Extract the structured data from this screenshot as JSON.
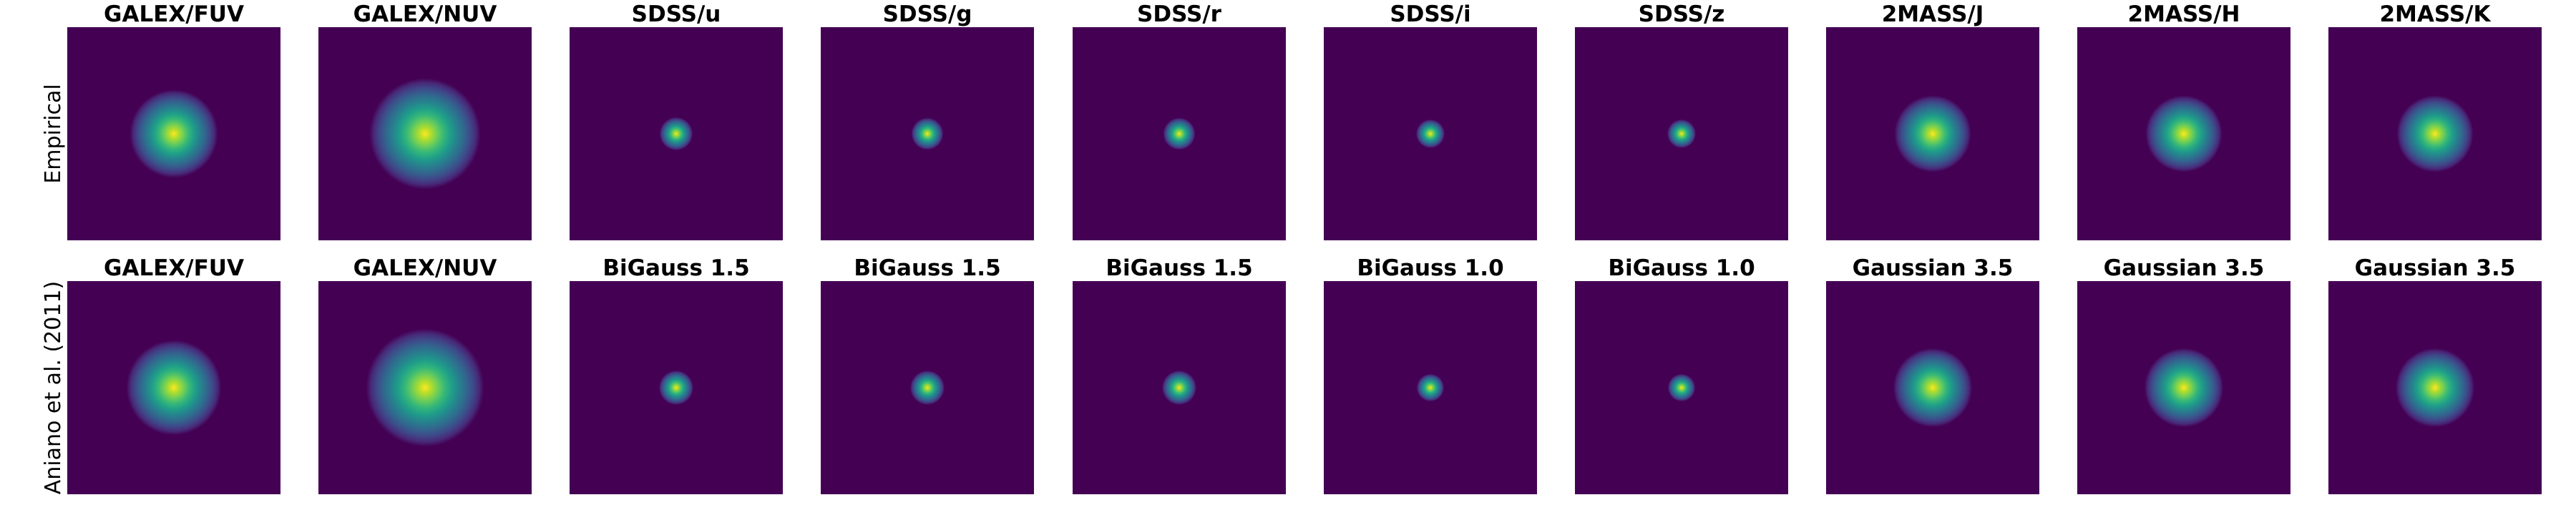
{
  "chart_data": {
    "type": "heatmap",
    "colormap": "viridis",
    "background_color": "#440154",
    "peak_color": "#fde725",
    "grid": false,
    "axes_visible": false,
    "rows": [
      {
        "label": "Empirical",
        "panels": [
          {
            "title": "GALEX/FUV",
            "psf_width": 3.6
          },
          {
            "title": "GALEX/NUV",
            "psf_width": 4.6
          },
          {
            "title": "SDSS/u",
            "psf_width": 1.2
          },
          {
            "title": "SDSS/g",
            "psf_width": 1.15
          },
          {
            "title": "SDSS/r",
            "psf_width": 1.15
          },
          {
            "title": "SDSS/i",
            "psf_width": 1.0
          },
          {
            "title": "SDSS/z",
            "psf_width": 1.0
          },
          {
            "title": "2MASS/J",
            "psf_width": 3.1
          },
          {
            "title": "2MASS/H",
            "psf_width": 3.1
          },
          {
            "title": "2MASS/K",
            "psf_width": 3.1
          }
        ]
      },
      {
        "label": "Aniano et al. (2011)",
        "panels": [
          {
            "title": "GALEX/FUV",
            "psf_width": 3.9
          },
          {
            "title": "GALEX/NUV",
            "psf_width": 4.9
          },
          {
            "title": "BiGauss 1.5",
            "psf_width": 1.25
          },
          {
            "title": "BiGauss 1.5",
            "psf_width": 1.25
          },
          {
            "title": "BiGauss 1.5",
            "psf_width": 1.25
          },
          {
            "title": "BiGauss 1.0",
            "psf_width": 0.95
          },
          {
            "title": "BiGauss 1.0",
            "psf_width": 0.95
          },
          {
            "title": "Gaussian 3.5",
            "psf_width": 3.2
          },
          {
            "title": "Gaussian 3.5",
            "psf_width": 3.2
          },
          {
            "title": "Gaussian 3.5",
            "psf_width": 3.2
          }
        ]
      }
    ]
  }
}
